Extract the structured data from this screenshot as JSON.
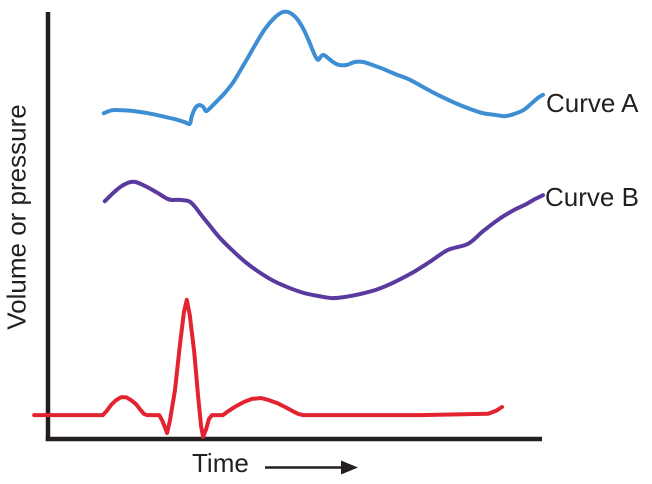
{
  "figure": {
    "background": "#ffffff"
  },
  "colors": {
    "axis": "#231f20",
    "text": "#231f20",
    "curve_a": "#3e8ed3",
    "curve_b": "#5a3a9e",
    "ecg_trace": "#e32330"
  },
  "chart_data": {
    "type": "line",
    "title": "",
    "xlabel": "Time",
    "ylabel": "Volume or pressure",
    "x_axis": {
      "has_ticks": false,
      "has_numbers": false,
      "arrow_after_label": true,
      "range_arbitrary_units": [
        0,
        100
      ]
    },
    "y_axis": {
      "has_ticks": false,
      "has_numbers": false,
      "range_arbitrary_units": [
        0,
        100
      ]
    },
    "grid": false,
    "legend_position": "inline-right-of-curves",
    "series": [
      {
        "id": "curve-a",
        "name": "Curve A",
        "color": "#3e8ed3",
        "smooth": true,
        "points": [
          [
            11.3,
            76.3
          ],
          [
            13.0,
            77.0
          ],
          [
            15.0,
            77.0
          ],
          [
            17.4,
            76.8
          ],
          [
            20.2,
            76.3
          ],
          [
            23.1,
            75.6
          ],
          [
            25.7,
            74.9
          ],
          [
            27.7,
            74.2
          ],
          [
            28.7,
            73.8
          ],
          [
            29.1,
            75.6
          ],
          [
            29.8,
            77.5
          ],
          [
            30.6,
            78.2
          ],
          [
            31.4,
            77.8
          ],
          [
            32.0,
            76.8
          ],
          [
            32.8,
            77.5
          ],
          [
            34.0,
            78.9
          ],
          [
            35.6,
            80.8
          ],
          [
            37.4,
            83.4
          ],
          [
            39.5,
            87.4
          ],
          [
            41.7,
            91.8
          ],
          [
            43.9,
            96.0
          ],
          [
            46.0,
            98.8
          ],
          [
            47.6,
            100.0
          ],
          [
            49.0,
            99.8
          ],
          [
            50.4,
            98.4
          ],
          [
            51.8,
            95.8
          ],
          [
            53.0,
            92.7
          ],
          [
            54.0,
            89.9
          ],
          [
            54.7,
            88.8
          ],
          [
            55.3,
            89.7
          ],
          [
            55.9,
            89.9
          ],
          [
            56.7,
            89.2
          ],
          [
            57.7,
            88.3
          ],
          [
            58.9,
            87.6
          ],
          [
            60.5,
            87.6
          ],
          [
            62.1,
            88.3
          ],
          [
            63.8,
            88.3
          ],
          [
            65.6,
            87.6
          ],
          [
            67.8,
            86.7
          ],
          [
            70.2,
            85.5
          ],
          [
            73.3,
            84.1
          ],
          [
            76.3,
            82.2
          ],
          [
            79.4,
            80.3
          ],
          [
            82.4,
            78.7
          ],
          [
            85.4,
            77.3
          ],
          [
            88.1,
            76.3
          ],
          [
            90.5,
            75.9
          ],
          [
            92.5,
            75.6
          ],
          [
            94.3,
            76.1
          ],
          [
            96.2,
            77.0
          ],
          [
            97.8,
            78.5
          ],
          [
            99.2,
            79.9
          ],
          [
            100.2,
            80.6
          ]
        ]
      },
      {
        "id": "curve-b",
        "name": "Curve B",
        "color": "#5a3a9e",
        "smooth": true,
        "points": [
          [
            11.5,
            55.7
          ],
          [
            13.0,
            57.4
          ],
          [
            14.6,
            59.0
          ],
          [
            16.2,
            60.0
          ],
          [
            17.6,
            60.2
          ],
          [
            19.2,
            59.5
          ],
          [
            20.9,
            58.5
          ],
          [
            22.5,
            57.4
          ],
          [
            23.9,
            56.4
          ],
          [
            24.9,
            56.0
          ],
          [
            26.7,
            56.0
          ],
          [
            28.5,
            55.7
          ],
          [
            29.6,
            54.6
          ],
          [
            31.0,
            52.5
          ],
          [
            32.8,
            49.9
          ],
          [
            34.8,
            47.1
          ],
          [
            37.2,
            44.3
          ],
          [
            39.9,
            41.5
          ],
          [
            42.7,
            39.1
          ],
          [
            45.7,
            37.0
          ],
          [
            48.8,
            35.4
          ],
          [
            51.8,
            34.2
          ],
          [
            54.7,
            33.5
          ],
          [
            57.5,
            33.0
          ],
          [
            60.3,
            33.3
          ],
          [
            63.4,
            34.0
          ],
          [
            66.8,
            35.1
          ],
          [
            70.2,
            36.8
          ],
          [
            73.7,
            38.9
          ],
          [
            77.3,
            41.5
          ],
          [
            81.0,
            44.3
          ],
          [
            85.0,
            45.7
          ],
          [
            88.1,
            48.7
          ],
          [
            91.3,
            51.5
          ],
          [
            94.3,
            53.6
          ],
          [
            96.8,
            55.0
          ],
          [
            98.6,
            56.2
          ],
          [
            100.2,
            57.1
          ]
        ]
      },
      {
        "id": "ecg-trace",
        "name": "",
        "color": "#e32330",
        "smooth": false,
        "points": [
          [
            -2.8,
            5.6
          ],
          [
            2.4,
            5.6
          ],
          [
            11.1,
            5.6
          ],
          [
            11.9,
            6.6
          ],
          [
            12.8,
            8.0
          ],
          [
            13.8,
            9.1
          ],
          [
            14.8,
            9.8
          ],
          [
            15.8,
            9.8
          ],
          [
            16.8,
            9.1
          ],
          [
            17.8,
            8.2
          ],
          [
            18.6,
            7.0
          ],
          [
            19.4,
            5.9
          ],
          [
            20.0,
            5.6
          ],
          [
            22.5,
            5.6
          ],
          [
            23.1,
            4.4
          ],
          [
            23.7,
            2.6
          ],
          [
            24.1,
            1.4
          ],
          [
            24.7,
            4.4
          ],
          [
            25.7,
            11.5
          ],
          [
            26.7,
            22.0
          ],
          [
            27.5,
            29.7
          ],
          [
            28.1,
            32.6
          ],
          [
            28.7,
            29.0
          ],
          [
            29.6,
            20.4
          ],
          [
            30.4,
            9.8
          ],
          [
            31.0,
            3.0
          ],
          [
            31.4,
            0.5
          ],
          [
            32.0,
            2.3
          ],
          [
            32.6,
            4.7
          ],
          [
            33.2,
            5.6
          ],
          [
            35.4,
            5.6
          ],
          [
            36.6,
            6.6
          ],
          [
            38.1,
            7.7
          ],
          [
            39.7,
            8.7
          ],
          [
            41.3,
            9.4
          ],
          [
            43.1,
            9.6
          ],
          [
            44.7,
            9.1
          ],
          [
            46.4,
            8.4
          ],
          [
            48.0,
            7.5
          ],
          [
            49.4,
            6.6
          ],
          [
            50.6,
            5.9
          ],
          [
            51.6,
            5.6
          ],
          [
            61.1,
            5.6
          ],
          [
            75.3,
            5.6
          ],
          [
            89.1,
            5.9
          ],
          [
            90.7,
            6.6
          ],
          [
            91.9,
            7.5
          ]
        ]
      }
    ]
  }
}
